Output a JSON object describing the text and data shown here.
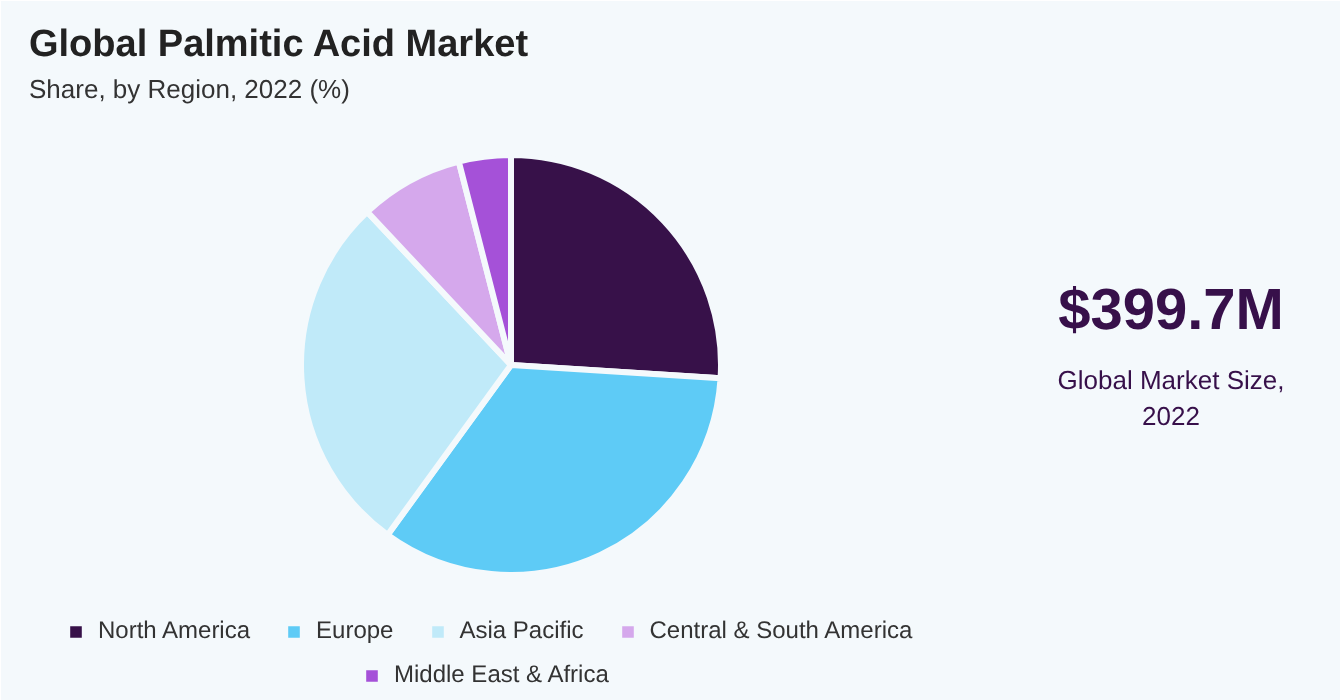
{
  "chart_data": {
    "type": "pie",
    "title": "Global Palmitic Acid Market",
    "subtitle": "Share, by Region, 2022 (%)",
    "categories": [
      "North America",
      "Europe",
      "Asia Pacific",
      "Central & South America",
      "Middle East & Africa"
    ],
    "values": [
      26,
      34,
      28,
      8,
      4
    ],
    "colors": [
      "#371149",
      "#5ecbf6",
      "#c0eaf9",
      "#d5a8ec",
      "#a551d8"
    ],
    "legend": "bottom",
    "annotations": [
      "$399.7M",
      "Global Market Size, 2022"
    ]
  }
}
